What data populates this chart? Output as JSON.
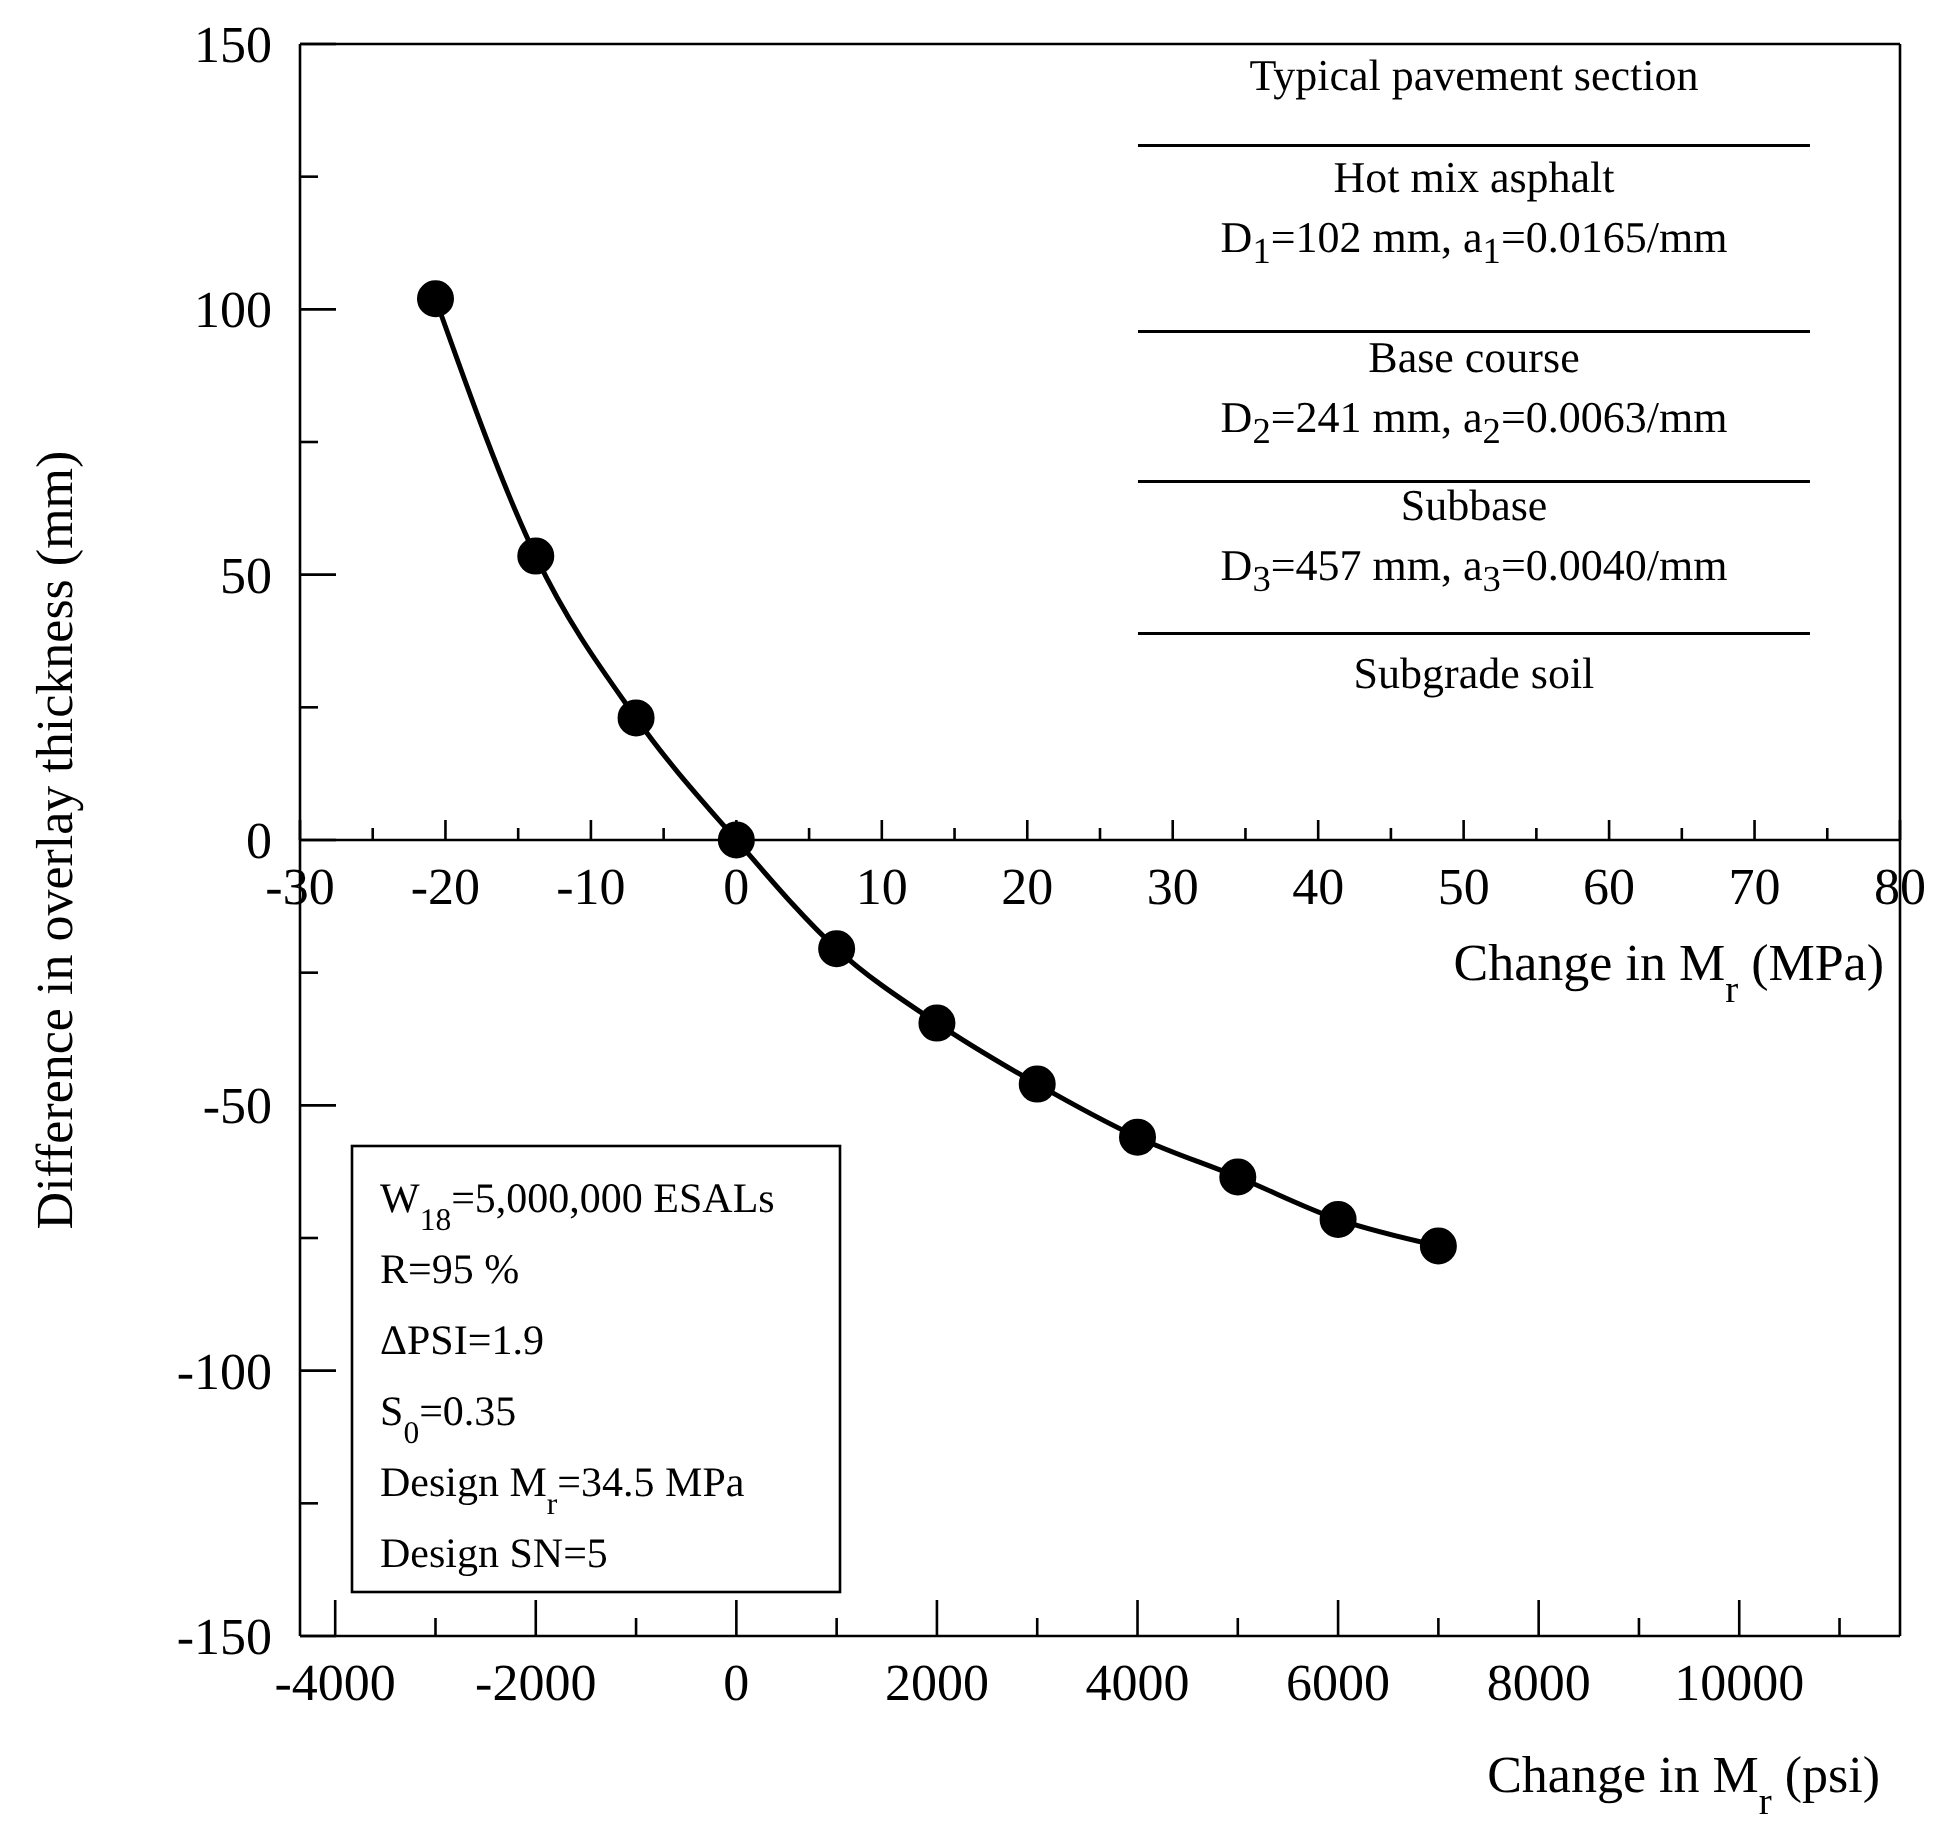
{
  "chart_data": {
    "type": "line",
    "xlabel": "Change in M$_{r}$ (psi)",
    "x2label": "Change in M$_{r}$ (MPa)",
    "ylabel": "Difference in overlay thickness (mm)",
    "x": [
      -3000,
      -2000,
      -1000,
      0,
      1000,
      2000,
      3000,
      4000,
      5000,
      6000,
      7000
    ],
    "series": [
      {
        "color": "#000000",
        "values": [
          102,
          53.5,
          23,
          0,
          -20.5,
          -34.5,
          -46,
          -56,
          -63.5,
          -71.5,
          -76.5
        ]
      }
    ],
    "marker": "circle",
    "line_style": "solid",
    "xlim": [
      -4351,
      11603
    ],
    "xticks": [
      -4000,
      {
        "value": -3000,
        "label": null
      },
      -2000,
      {
        "value": -1000,
        "label": null
      },
      0,
      {
        "value": 1000,
        "label": null
      },
      2000,
      {
        "value": 3000,
        "label": null
      },
      4000,
      {
        "value": 5000,
        "label": null
      },
      6000,
      {
        "value": 7000,
        "label": null
      },
      8000,
      {
        "value": 9000,
        "label": null
      },
      10000,
      {
        "value": 11000,
        "label": null
      }
    ],
    "x2lim": [
      -30,
      80
    ],
    "x2ticks": [
      -30,
      {
        "value": -25,
        "label": null
      },
      -20,
      {
        "value": -15,
        "label": null
      },
      -10,
      {
        "value": -5,
        "label": null
      },
      0,
      {
        "value": 5,
        "label": null
      },
      10,
      {
        "value": 15,
        "label": null
      },
      20,
      {
        "value": 25,
        "label": null
      },
      30,
      {
        "value": 35,
        "label": null
      },
      40,
      {
        "value": 45,
        "label": null
      },
      50,
      {
        "value": 55,
        "label": null
      },
      60,
      {
        "value": 65,
        "label": null
      },
      70,
      {
        "value": 75,
        "label": null
      },
      80
    ],
    "ylim": [
      -150,
      150
    ],
    "yticks": [
      -150,
      {
        "value": -125,
        "label": null
      },
      -100,
      {
        "value": -75,
        "label": null
      },
      -50,
      {
        "value": -25,
        "label": null
      },
      0,
      {
        "value": 25,
        "label": null
      },
      50,
      {
        "value": 75,
        "label": null
      },
      100,
      {
        "value": 125,
        "label": null
      },
      150
    ],
    "annotations": [
      "Typical pavement section",
      "Hot mix asphalt",
      "D$_{1}$=102 mm, a$_{1}$=0.0165/mm",
      "Base course",
      "D$_{2}$=241 mm, a$_{2}$=0.0063/mm",
      "Subbase",
      "D$_{3}$=457 mm, a$_{3}$=0.0040/mm",
      "Subgrade soil",
      "W$_{18}$=5,000,000 ESALs",
      "R=95 %",
      "ΔPSI=1.9",
      "S$_{0}$=0.35",
      "Design M$_{r}$=34.5 MPa",
      "Design SN=5"
    ]
  }
}
